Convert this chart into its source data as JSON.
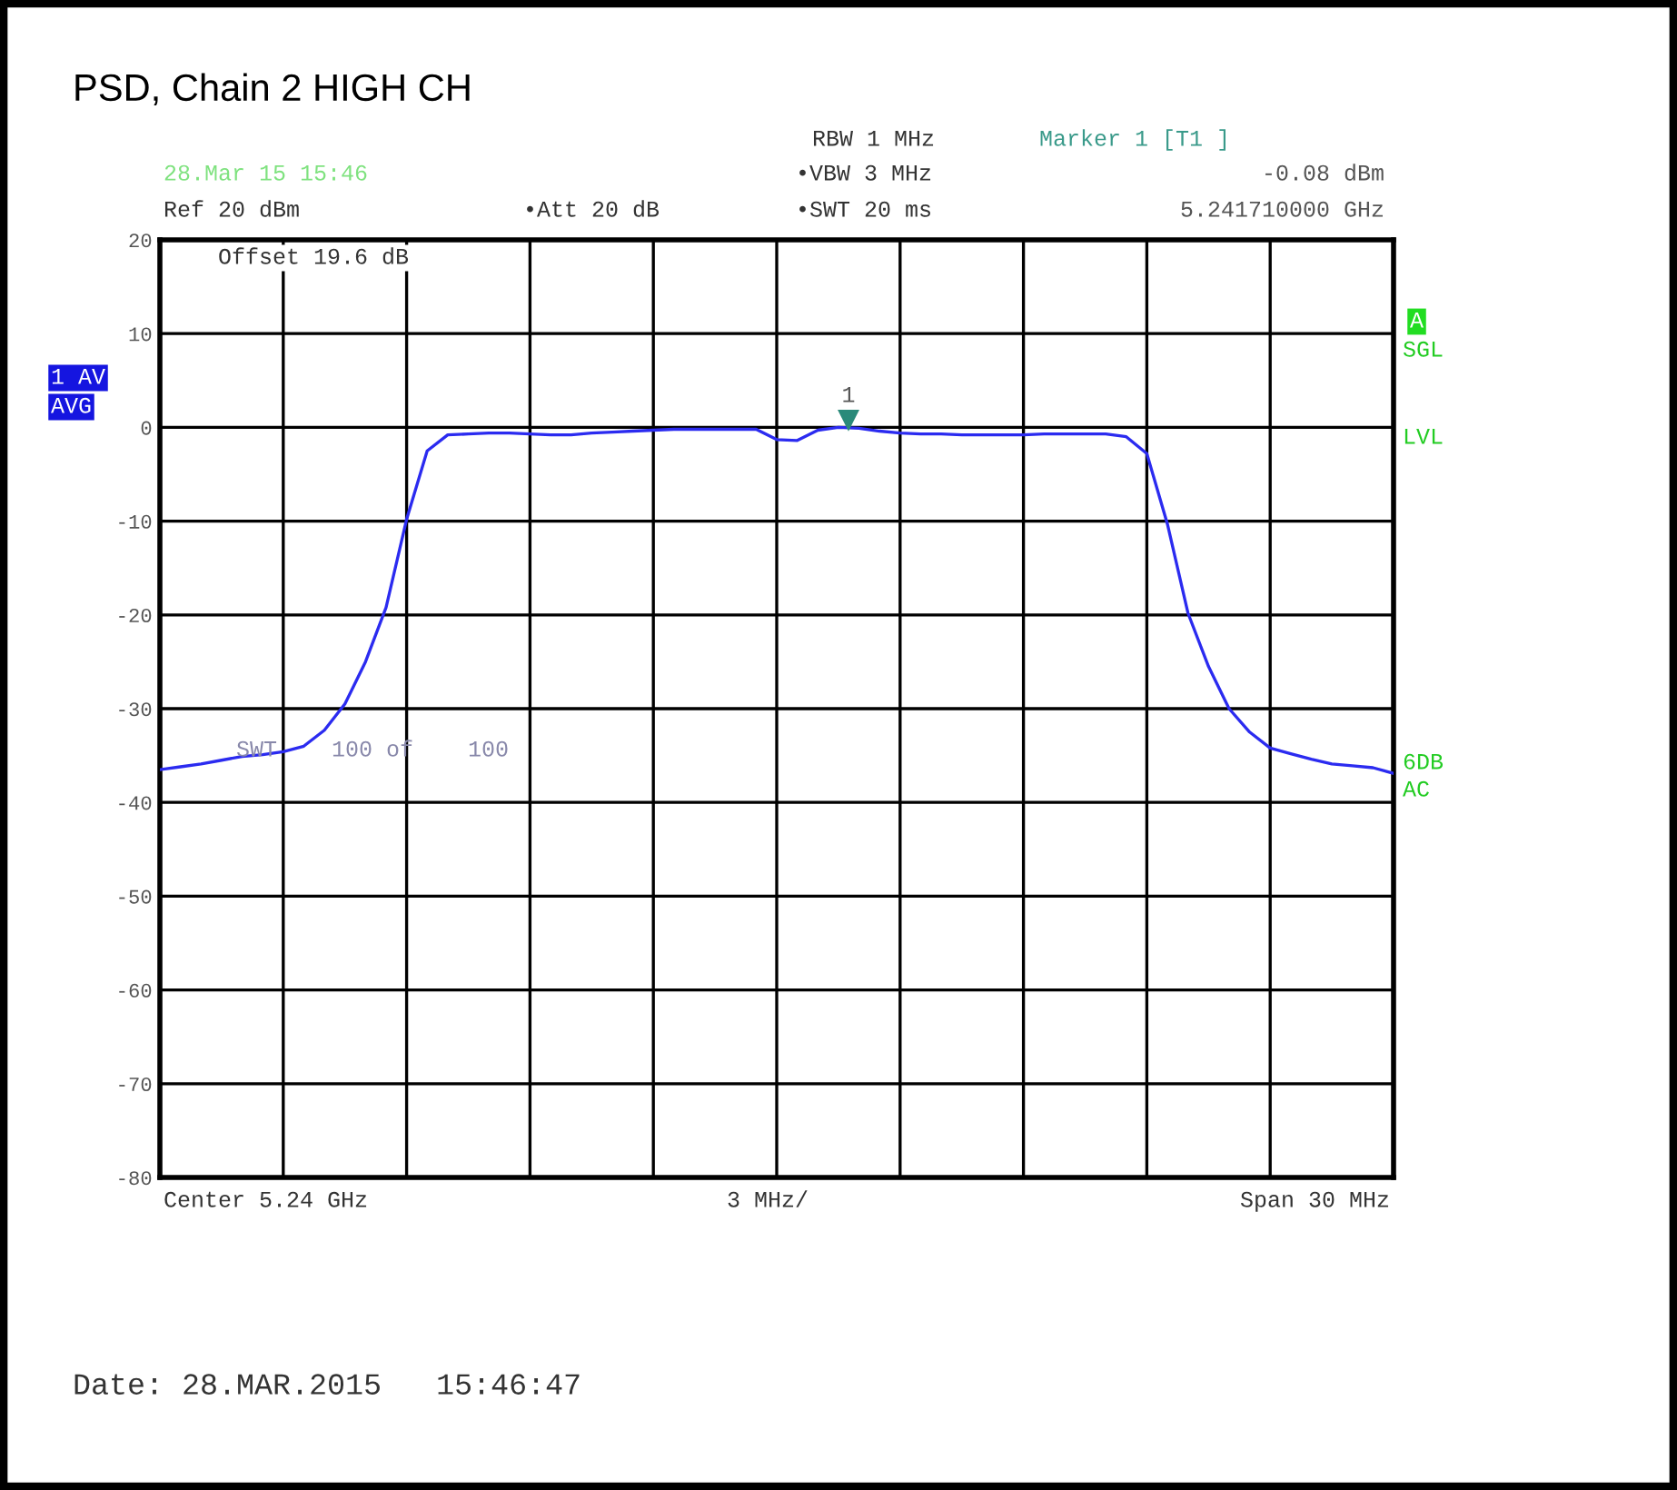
{
  "chart_data": {
    "type": "line",
    "title": "PSD, Chain 2 HIGH CH",
    "categories": [
      null,
      null,
      null,
      null,
      null,
      null,
      null,
      null,
      null,
      null,
      null,
      null,
      null,
      null,
      null,
      null,
      null,
      null,
      null,
      null,
      null,
      null,
      null,
      null,
      null,
      null,
      null,
      null,
      null,
      null,
      null,
      null,
      null,
      null,
      null,
      null,
      null,
      null,
      null,
      null,
      null,
      null,
      null,
      null,
      null,
      null,
      null,
      null,
      null,
      null,
      null,
      null,
      null,
      null,
      null,
      null,
      null,
      null,
      null,
      null,
      null
    ],
    "series": [
      {
        "color": "#2b2bf0",
        "values": [
          -36.5,
          -36.2,
          -35.9,
          -35.5,
          -35.1,
          -34.9,
          -34.6,
          -34.0,
          -32.3,
          -29.5,
          -25.0,
          -19.2,
          -9.8,
          -2.5,
          -0.8,
          -0.7,
          -0.6,
          -0.6,
          -0.7,
          -0.8,
          -0.8,
          -0.6,
          -0.5,
          -0.4,
          -0.3,
          -0.2,
          -0.2,
          -0.2,
          -0.2,
          -0.2,
          -1.3,
          -1.4,
          -0.3,
          0.0,
          -0.1,
          -0.4,
          -0.6,
          -0.7,
          -0.7,
          -0.8,
          -0.8,
          -0.8,
          -0.8,
          -0.7,
          -0.7,
          -0.7,
          -0.7,
          -1.0,
          -2.8,
          -10.3,
          -19.8,
          -25.5,
          -30.0,
          -32.5,
          -34.2,
          -34.8,
          -35.4,
          -35.9,
          -36.1,
          -36.3,
          -36.9
        ]
      }
    ],
    "ylim": [
      -80,
      20
    ],
    "yticks": [
      20,
      10,
      0,
      -10,
      -20,
      -30,
      -40,
      -50,
      -60,
      -70,
      -80
    ],
    "grid": true,
    "legend": false,
    "marker": "none",
    "line_style": "solid",
    "annotations": [
      "28.Mar 15 15:46",
      "Ref 20 dBm",
      "•Att 20 dB",
      "RBW 1 MHz",
      "•VBW 3 MHz",
      "•SWT 20 ms",
      "Marker 1 [T1 ]",
      "-0.08 dBm",
      "5.241710000 GHz",
      "Offset 19.6 dB",
      "1 AV",
      "AVG",
      "A",
      "SGL",
      "LVL",
      "6DB",
      "AC",
      "SWT    100 of    100",
      "Center 5.24 GHz",
      "3 MHz/",
      "Span 30 MHz",
      "Date: 28.MAR.2015   15:46:47",
      "1"
    ]
  }
}
